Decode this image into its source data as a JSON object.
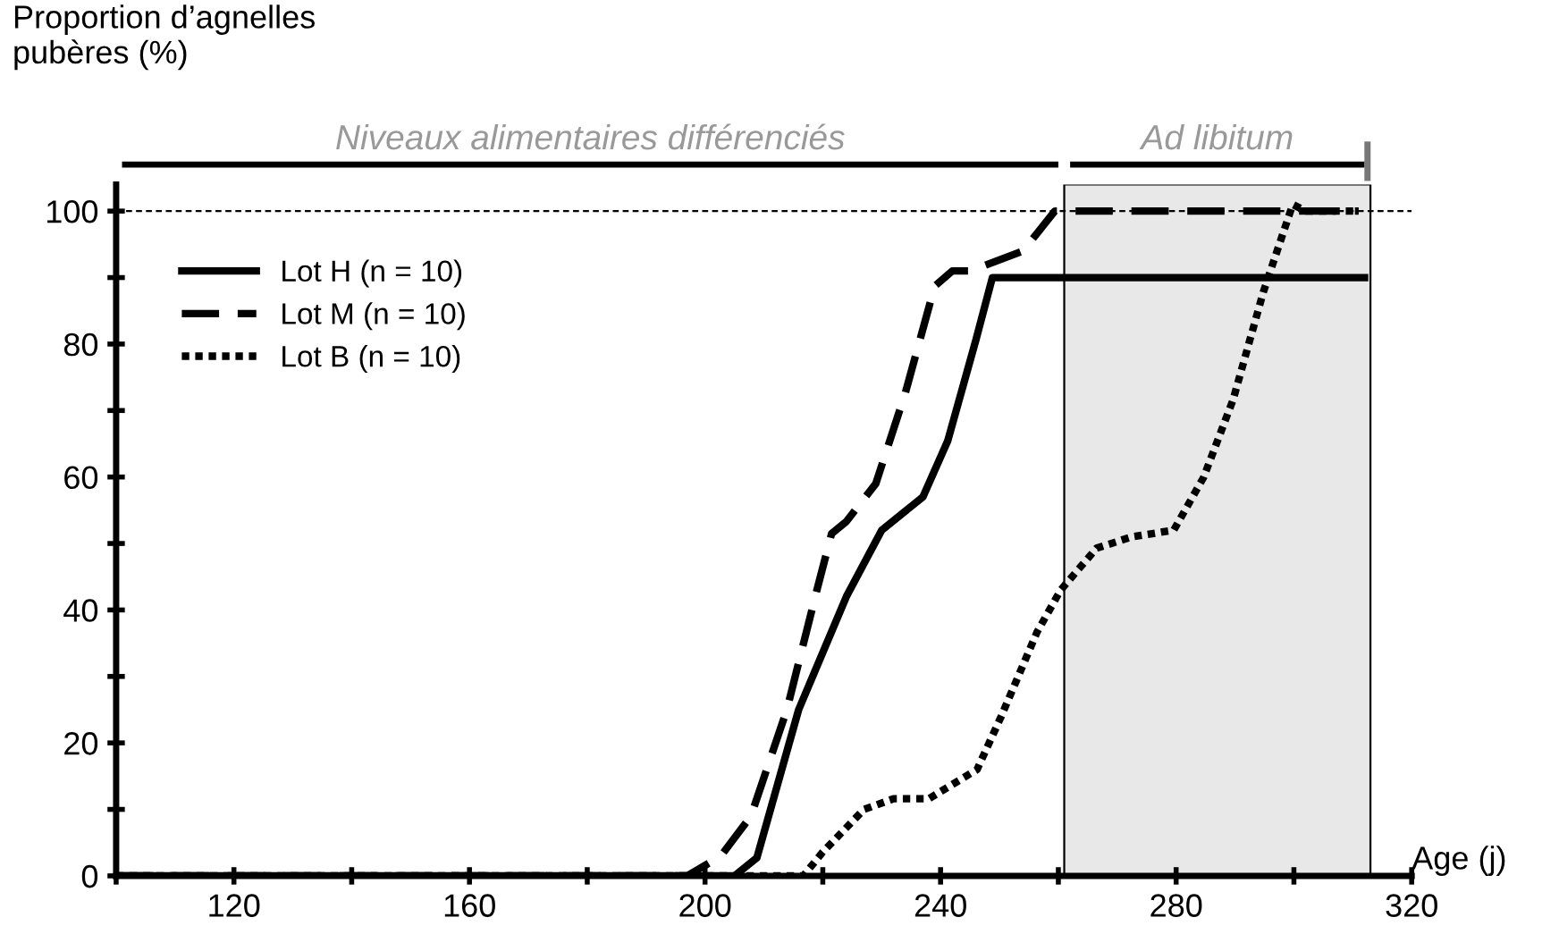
{
  "chart_data": {
    "type": "line",
    "ylabel": "Proportion d’agnelles\npubères (%)",
    "xlabel": "Age (j)",
    "xlim": [
      100,
      320
    ],
    "ylim": [
      0,
      104
    ],
    "xticks": [
      {
        "value": 100,
        "label": null
      },
      120,
      {
        "value": 140,
        "label": null
      },
      160,
      {
        "value": 180,
        "label": null
      },
      200,
      {
        "value": 220,
        "label": null
      },
      240,
      {
        "value": 260,
        "label": null
      },
      280,
      {
        "value": 300,
        "label": null
      },
      320
    ],
    "yticks": [
      0,
      {
        "value": 10,
        "label": null
      },
      20,
      {
        "value": 30,
        "label": null
      },
      40,
      {
        "value": 50,
        "label": null
      },
      60,
      {
        "value": 70,
        "label": null
      },
      80,
      {
        "value": 90,
        "label": null
      },
      100
    ],
    "grid": false,
    "legend": "top left",
    "marker": "none",
    "series": [
      {
        "name": "Lot H (n = 10)",
        "color": "#000000",
        "line_style": "solid",
        "x": [
          100,
          205,
          208.8,
          215.9,
          224,
          230,
          237,
          241.2,
          246,
          248.8,
          280,
          312
        ],
        "values": [
          0,
          0,
          2.7,
          25,
          42,
          52,
          57,
          65.4,
          80.6,
          90,
          90,
          90
        ]
      },
      {
        "name": "Lot M (n = 10)",
        "color": "#000000",
        "line_style": "dashed",
        "x": [
          100,
          197,
          202.7,
          207.8,
          213.9,
          219,
          221.5,
          224,
          229,
          234,
          239,
          242,
          245,
          254,
          259.4,
          311
        ],
        "values": [
          0,
          0,
          3,
          9,
          25,
          43,
          51.5,
          53.3,
          59,
          72.6,
          88.7,
          91,
          91,
          94,
          100,
          100
        ]
      },
      {
        "name": "Lot B (n = 10)",
        "color": "#000000",
        "line_style": "dotted",
        "x": [
          100,
          216.7,
          220,
          227,
          232,
          238,
          246.2,
          250.3,
          256.4,
          260.4,
          266.5,
          272.5,
          279.6,
          284.7,
          289.7,
          294.8,
          299.8,
          302,
          311
        ],
        "values": [
          0,
          0,
          3.6,
          10,
          11.6,
          11.6,
          16,
          24,
          36.7,
          43,
          49.3,
          51,
          52,
          60,
          71.7,
          87.8,
          101,
          100,
          100
        ]
      }
    ],
    "ref_lines": [
      {
        "axis": "y",
        "value": 100,
        "line_style": "dashed",
        "color": "#000000"
      }
    ],
    "annotations": [
      "Niveaux alimentaires différenciés"
    ],
    "bands": [
      {
        "axis": "x",
        "from": 261,
        "to": 313,
        "label": "Ad libitum",
        "color": "#e8e8e8"
      }
    ]
  }
}
